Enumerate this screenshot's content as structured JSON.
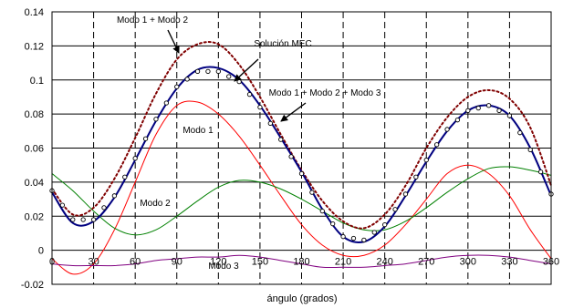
{
  "chart_data": {
    "type": "line",
    "title": "",
    "xlabel": "ángulo (grados)",
    "ylabel": "",
    "xlim": [
      0,
      360
    ],
    "ylim": [
      -0.02,
      0.14
    ],
    "x_ticks": [
      "0",
      "30",
      "60",
      "90",
      "120",
      "150",
      "180",
      "210",
      "240",
      "270",
      "300",
      "330",
      "360"
    ],
    "y_ticks": [
      "-0.02",
      "0",
      "0.02",
      "0.04",
      "0.06",
      "0.08",
      "0.1",
      "0.12",
      "0.14"
    ],
    "grid": "dashed vertical lines, solid horizontal lines",
    "x": [
      0,
      15,
      30,
      45,
      60,
      75,
      90,
      105,
      120,
      135,
      150,
      165,
      180,
      195,
      210,
      225,
      240,
      255,
      270,
      285,
      300,
      315,
      330,
      345,
      360
    ],
    "series": [
      {
        "name": "Solución MEC",
        "color": "#000080",
        "style": "solid",
        "values": [
          0.034,
          0.016,
          0.017,
          0.031,
          0.053,
          0.076,
          0.095,
          0.106,
          0.107,
          0.1,
          0.085,
          0.066,
          0.046,
          0.024,
          0.008,
          0.005,
          0.014,
          0.032,
          0.052,
          0.07,
          0.082,
          0.085,
          0.079,
          0.06,
          0.032
        ]
      },
      {
        "name": "",
        "color": "#000000",
        "style": "open circle markers",
        "values": [
          0.035,
          0.018,
          0.018,
          0.032,
          0.054,
          0.077,
          0.096,
          0.105,
          0.105,
          0.099,
          0.084,
          0.065,
          0.045,
          0.023,
          0.008,
          0.006,
          0.015,
          0.033,
          0.053,
          0.071,
          0.082,
          0.085,
          0.079,
          0.059,
          0.033
        ]
      },
      {
        "name": "Modo 1 + Modo 2",
        "color": "#800000",
        "style": "dotted",
        "values": [
          0.036,
          0.021,
          0.025,
          0.042,
          0.066,
          0.092,
          0.112,
          0.121,
          0.121,
          0.109,
          0.09,
          0.068,
          0.047,
          0.029,
          0.017,
          0.013,
          0.021,
          0.038,
          0.06,
          0.078,
          0.09,
          0.094,
          0.089,
          0.072,
          0.038
        ]
      },
      {
        "name": "Modo 1 + Modo 2 + Modo 3",
        "color": "#000080",
        "style": "solid",
        "values": [
          0.034,
          0.016,
          0.017,
          0.031,
          0.053,
          0.076,
          0.095,
          0.106,
          0.107,
          0.1,
          0.085,
          0.066,
          0.046,
          0.024,
          0.008,
          0.005,
          0.014,
          0.032,
          0.052,
          0.07,
          0.082,
          0.085,
          0.079,
          0.06,
          0.032
        ]
      },
      {
        "name": "Modo 1",
        "color": "#ff0000",
        "style": "solid",
        "values": [
          -0.005,
          -0.014,
          -0.008,
          0.012,
          0.04,
          0.068,
          0.085,
          0.087,
          0.08,
          0.067,
          0.05,
          0.032,
          0.015,
          0.003,
          -0.003,
          -0.003,
          0.003,
          0.015,
          0.03,
          0.045,
          0.05,
          0.045,
          0.032,
          0.012,
          -0.005
        ]
      },
      {
        "name": "Modo 2",
        "color": "#008000",
        "style": "solid",
        "values": [
          0.045,
          0.035,
          0.023,
          0.013,
          0.009,
          0.012,
          0.02,
          0.029,
          0.037,
          0.041,
          0.04,
          0.036,
          0.03,
          0.023,
          0.016,
          0.012,
          0.012,
          0.017,
          0.025,
          0.034,
          0.042,
          0.048,
          0.049,
          0.047,
          0.044
        ]
      },
      {
        "name": "Modo 3",
        "color": "#800080",
        "style": "solid",
        "values": [
          -0.008,
          -0.009,
          -0.009,
          -0.009,
          -0.008,
          -0.006,
          -0.005,
          -0.004,
          -0.004,
          -0.003,
          -0.004,
          -0.006,
          -0.008,
          -0.01,
          -0.01,
          -0.01,
          -0.009,
          -0.008,
          -0.006,
          -0.004,
          -0.003,
          -0.003,
          -0.004,
          -0.006,
          -0.008
        ]
      }
    ],
    "annotations": [
      {
        "text": "Modo 1 + Modo 2",
        "arrow": true
      },
      {
        "text": "Solución MEC",
        "arrow": true
      },
      {
        "text": "Modo 1 + Modo 2 + Modo 3",
        "arrow": true
      },
      {
        "text": "Modo 1",
        "arrow": false
      },
      {
        "text": "Modo 2",
        "arrow": false
      },
      {
        "text": "Modo 3",
        "arrow": false
      }
    ]
  }
}
